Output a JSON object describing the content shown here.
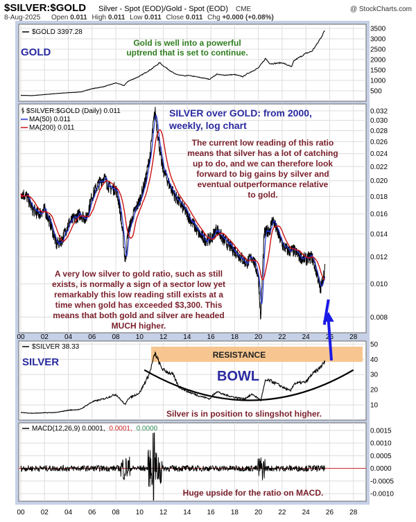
{
  "header": {
    "title": "$SILVER:$GOLD",
    "subtitle": "Silver - Spot (EOD)/Gold - Spot (EOD)",
    "exchange": "CME",
    "source": "@ StockCharts.com",
    "date": "8-Aug-2025",
    "quote_line": "Open 0.011  High 0.011  Low 0.011  Close 0.011  Chg +0.000 (+0.08%)",
    "open_label": "Open",
    "open": "0.011",
    "high_label": "High",
    "high": "0.011",
    "low_label": "Low",
    "low": "0.011",
    "close_label": "Close",
    "close": "0.011",
    "chg_label": "Chg",
    "chg": "+0.000 (+0.08%)"
  },
  "colors": {
    "price": "#000000",
    "ma50": "#2233cc",
    "ma200": "#cc1111",
    "macd_zero": "#cc2222",
    "macd_signal": "#2e8b57",
    "bowl_band": "#f7c690",
    "arrow": "#1a1ae6",
    "panel_bg": "#ffffff",
    "grid": "#dcdcdc",
    "outer_bg": "#c6d0e6"
  },
  "icons": {
    "legend_bar_icon": "ohlc-bar-icon"
  },
  "x_axis": {
    "ticks": [
      "00",
      "02",
      "04",
      "06",
      "08",
      "10",
      "12",
      "14",
      "16",
      "18",
      "20",
      "22",
      "24",
      "26",
      "28"
    ]
  },
  "chart_data": [
    {
      "type": "line",
      "name_label": "$GOLD 3397.28",
      "panel_title": "GOLD",
      "annotation": [
        "Gold is well into a powerful",
        "uptrend that is set to continue."
      ],
      "y_ticks": [
        500,
        1000,
        1500,
        2000,
        2500,
        3000,
        3500
      ],
      "ylim": [
        0,
        3700
      ],
      "x": [
        2000,
        2001,
        2002,
        2003,
        2004,
        2005,
        2006,
        2007,
        2008,
        2008.7,
        2009,
        2010,
        2011,
        2011.7,
        2012,
        2013,
        2013.9,
        2014,
        2015,
        2015.9,
        2016.5,
        2017,
        2018,
        2018.7,
        2019,
        2019.5,
        2020,
        2020.6,
        2021,
        2022,
        2022.8,
        2023,
        2024,
        2024.5,
        2025,
        2025.6
      ],
      "y": [
        280,
        270,
        320,
        370,
        410,
        440,
        600,
        700,
        880,
        750,
        950,
        1200,
        1550,
        1850,
        1700,
        1300,
        1200,
        1250,
        1150,
        1060,
        1300,
        1250,
        1280,
        1180,
        1300,
        1450,
        1600,
        2050,
        1800,
        1850,
        1650,
        1950,
        2300,
        2400,
        2800,
        3400
      ]
    },
    {
      "type": "line",
      "name_label": "$SILVER:$GOLD (Daily) 0.011",
      "series_names": [
        "MA(50) 0.011",
        "MA(200) 0.011"
      ],
      "headline": [
        "SILVER over GOLD: from 2000,",
        "weekly, log chart"
      ],
      "annotation_top": [
        "The current low reading of this ratio",
        "means that silver has a lot of catching",
        "up to do, and we can therefore look",
        "forward to big gains by silver and",
        "eventual outperformance relative",
        "to gold."
      ],
      "annotation_bottom": [
        "A very low silver to  gold ratio, such as still",
        "exists, is normally a sign of a sector low yet",
        "remarkably this low reading still exists at a",
        "time when gold has exceeded $3,300. This",
        "means that both gold and silver are headed",
        "MUCH higher."
      ],
      "log_scale": true,
      "y_ticks": [
        0.008,
        0.01,
        0.012,
        0.014,
        0.016,
        0.018,
        0.02,
        0.022,
        0.024,
        0.026,
        0.028,
        0.03,
        0.032
      ],
      "ylim": [
        0.0072,
        0.0335
      ],
      "x": [
        2000,
        2000.5,
        2001,
        2001.5,
        2002,
        2002.5,
        2003,
        2003.5,
        2004,
        2004.5,
        2005,
        2005.5,
        2006,
        2006.5,
        2007,
        2007.5,
        2008,
        2008.3,
        2008.8,
        2009,
        2009.5,
        2010,
        2010.5,
        2010.9,
        2011,
        2011.3,
        2011.5,
        2011.8,
        2012,
        2012.5,
        2013,
        2013.5,
        2014,
        2014.5,
        2015,
        2015.5,
        2016,
        2016.5,
        2017,
        2017.5,
        2018,
        2018.5,
        2019,
        2019.5,
        2020,
        2020.2,
        2020.5,
        2021,
        2021.2,
        2021.5,
        2022,
        2022.5,
        2023,
        2023.5,
        2024,
        2024.5,
        2025,
        2025.2,
        2025.6
      ],
      "y": [
        0.0185,
        0.018,
        0.0165,
        0.016,
        0.0165,
        0.015,
        0.013,
        0.0135,
        0.015,
        0.0155,
        0.016,
        0.0155,
        0.018,
        0.0195,
        0.0205,
        0.019,
        0.019,
        0.017,
        0.0115,
        0.014,
        0.016,
        0.0175,
        0.02,
        0.024,
        0.026,
        0.032,
        0.028,
        0.023,
        0.0215,
        0.0195,
        0.018,
        0.017,
        0.016,
        0.015,
        0.014,
        0.0135,
        0.0135,
        0.0145,
        0.0135,
        0.013,
        0.0125,
        0.012,
        0.0115,
        0.012,
        0.0105,
        0.0078,
        0.014,
        0.0145,
        0.0155,
        0.0145,
        0.013,
        0.0125,
        0.0125,
        0.012,
        0.0118,
        0.012,
        0.0105,
        0.0095,
        0.011
      ]
    },
    {
      "type": "line",
      "name_label": "$SILVER 38.33",
      "panel_title": "SILVER",
      "band_label": "RESISTANCE",
      "shape_label": "BOWL",
      "annotation": "Silver is in position to slingshot higher.",
      "y_ticks": [
        10,
        20,
        30,
        40,
        50
      ],
      "ylim": [
        0,
        52
      ],
      "x": [
        2000,
        2001,
        2002,
        2003,
        2004,
        2005,
        2006,
        2006.5,
        2007,
        2008,
        2008.8,
        2009,
        2010,
        2010.8,
        2011.3,
        2011.8,
        2012,
        2012.8,
        2013.3,
        2014,
        2015,
        2015.9,
        2016.5,
        2017,
        2018,
        2018.8,
        2019.5,
        2020.2,
        2020.6,
        2021,
        2021.5,
        2022,
        2022.7,
        2023,
        2024,
        2024.5,
        2025,
        2025.6
      ],
      "y": [
        5,
        4.5,
        4.8,
        5,
        6.5,
        7,
        12,
        13,
        14,
        17,
        10,
        14,
        18,
        30,
        44,
        35,
        33,
        30,
        22,
        19,
        16,
        14,
        19,
        17,
        15,
        14,
        17,
        13,
        26,
        26,
        24,
        22,
        19,
        24,
        25,
        30,
        33,
        38.33
      ]
    },
    {
      "type": "line",
      "name_label": "MACD(12,26,9) 0.0001,",
      "legend_values": [
        "0.0001,",
        "0.0000"
      ],
      "annotation": "Huge upside for the ratio on MACD.",
      "y_ticks": [
        -0.001,
        -0.0005,
        0.0,
        0.0005,
        0.001,
        0.0015
      ],
      "ylim": [
        -0.0013,
        0.0018
      ]
    }
  ]
}
